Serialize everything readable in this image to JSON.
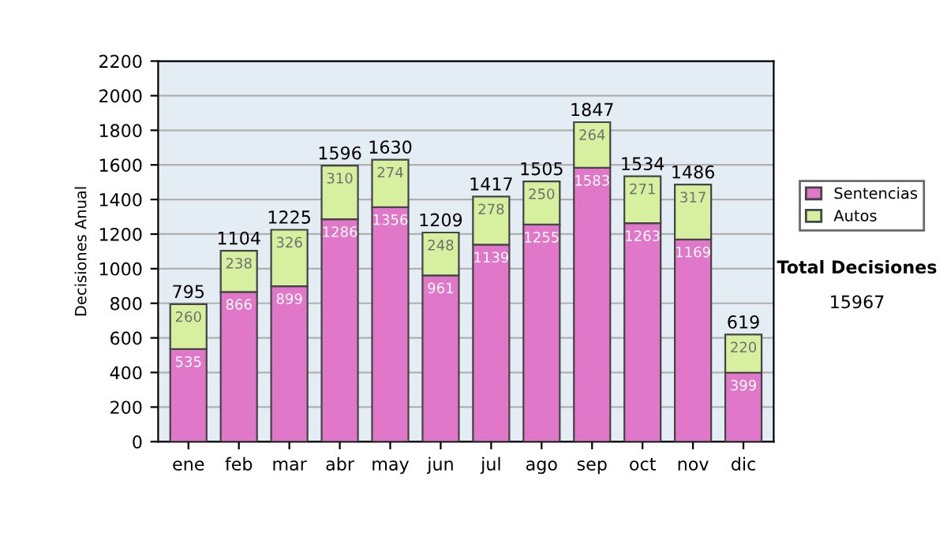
{
  "chart_data": {
    "type": "bar",
    "ylabel": "Decisiones Anual",
    "categories": [
      "ene",
      "feb",
      "mar",
      "abr",
      "may",
      "jun",
      "jul",
      "ago",
      "sep",
      "oct",
      "nov",
      "dic"
    ],
    "series": [
      {
        "name": "Sentencias",
        "color": "#e077c8",
        "values": [
          535,
          866,
          899,
          1286,
          1356,
          961,
          1139,
          1255,
          1583,
          1263,
          1169,
          399
        ]
      },
      {
        "name": "Autos",
        "color": "#d6f0a0",
        "values": [
          260,
          238,
          326,
          310,
          274,
          248,
          278,
          250,
          264,
          271,
          317,
          220
        ]
      }
    ],
    "stacked": true,
    "data_labels": true,
    "totals": [
      "795",
      "1104",
      "1225",
      "1596",
      "1630",
      "1209",
      "1417",
      "1505",
      "1847",
      "1534",
      "1486",
      "619"
    ],
    "ylim": [
      0,
      2200
    ],
    "yticks": [
      0,
      200,
      400,
      600,
      800,
      1000,
      1200,
      1400,
      1600,
      1800,
      2000,
      2200
    ],
    "grid": "y",
    "legend": "right",
    "annotations": [
      "Total Decisiones",
      "15967"
    ]
  }
}
